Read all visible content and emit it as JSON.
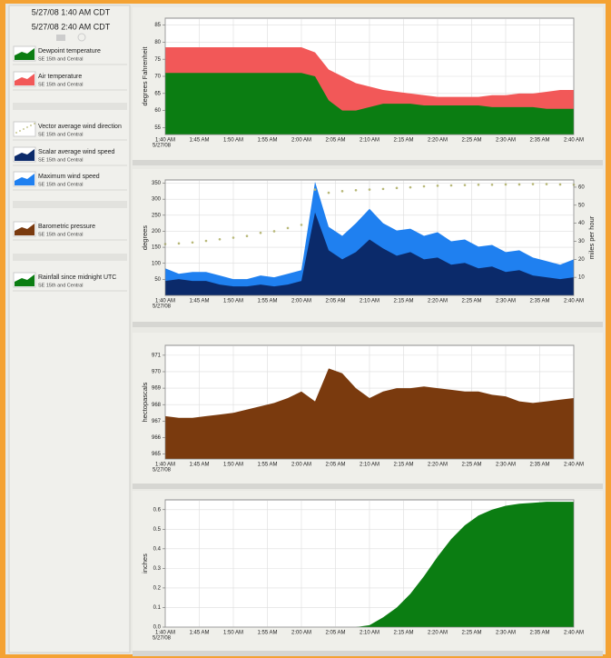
{
  "sidebar": {
    "times": [
      "5/27/08 1:40 AM CDT",
      "5/27/08 2:40 AM CDT"
    ],
    "legend": [
      {
        "name": "Dewpoint temperature",
        "location": "SE 15th and Central",
        "color": "#0b7d12"
      },
      {
        "name": "Air temperature",
        "location": "SE 15th and Central",
        "color": "#f25858"
      },
      {
        "name": "Vector average wind direction",
        "location": "SE 15th and Central",
        "color": "#b8b878"
      },
      {
        "name": "Scalar average wind speed",
        "location": "SE 15th and Central",
        "color": "#0b2a6a"
      },
      {
        "name": "Maximum wind speed",
        "location": "SE 15th and Central",
        "color": "#1f80f0"
      },
      {
        "name": "Barometric pressure",
        "location": "SE 15th and Central",
        "color": "#7a3a0e"
      },
      {
        "name": "Rainfall since midnight UTC",
        "location": "SE 15th and Central",
        "color": "#0b7d12"
      }
    ]
  },
  "chart_data": [
    {
      "type": "area",
      "ylabel": "degrees Fahrenheit",
      "xdate": "5/27/08",
      "x": [
        "1:40 AM",
        "1:42 AM",
        "1:44 AM",
        "1:46 AM",
        "1:48 AM",
        "1:50 AM",
        "1:52 AM",
        "1:54 AM",
        "1:56 AM",
        "1:58 AM",
        "2:00 AM",
        "2:02 AM",
        "2:04 AM",
        "2:06 AM",
        "2:08 AM",
        "2:10 AM",
        "2:12 AM",
        "2:14 AM",
        "2:16 AM",
        "2:18 AM",
        "2:20 AM",
        "2:22 AM",
        "2:24 AM",
        "2:26 AM",
        "2:28 AM",
        "2:30 AM",
        "2:32 AM",
        "2:34 AM",
        "2:36 AM",
        "2:38 AM",
        "2:40 AM"
      ],
      "xlim": [
        "1:40 AM",
        "2:40 AM"
      ],
      "xticks": [
        "1:40 AM",
        "1:45 AM",
        "1:50 AM",
        "1:55 AM",
        "2:00 AM",
        "2:05 AM",
        "2:10 AM",
        "2:15 AM",
        "2:20 AM",
        "2:25 AM",
        "2:30 AM",
        "2:35 AM",
        "2:40 AM"
      ],
      "ylim": [
        53,
        87
      ],
      "yticks": [
        55,
        60,
        65,
        70,
        75,
        80,
        85
      ],
      "grid": true,
      "series": [
        {
          "color": "#f25858",
          "values": [
            78.5,
            78.5,
            78.5,
            78.5,
            78.5,
            78.5,
            78.5,
            78.5,
            78.5,
            78.5,
            78.5,
            77,
            72,
            70,
            68,
            67,
            66,
            65.5,
            65,
            64.5,
            64,
            64,
            64,
            64,
            64.5,
            64.5,
            65,
            65,
            65.5,
            66,
            66
          ]
        },
        {
          "color": "#0b7d12",
          "values": [
            71,
            71,
            71,
            71,
            71,
            71,
            71,
            71,
            71,
            71,
            71,
            70,
            63,
            60,
            60,
            61,
            62,
            62,
            62,
            61.5,
            61.5,
            61.5,
            61.5,
            61.5,
            61,
            61,
            61,
            61,
            60.5,
            60.5,
            60.5
          ]
        }
      ]
    },
    {
      "type": "area",
      "ylabel": "degrees",
      "y2label": "miles per hour",
      "xdate": "5/27/08",
      "x": [
        "1:40 AM",
        "1:42 AM",
        "1:44 AM",
        "1:46 AM",
        "1:48 AM",
        "1:50 AM",
        "1:52 AM",
        "1:54 AM",
        "1:56 AM",
        "1:58 AM",
        "2:00 AM",
        "2:02 AM",
        "2:04 AM",
        "2:06 AM",
        "2:08 AM",
        "2:10 AM",
        "2:12 AM",
        "2:14 AM",
        "2:16 AM",
        "2:18 AM",
        "2:20 AM",
        "2:22 AM",
        "2:24 AM",
        "2:26 AM",
        "2:28 AM",
        "2:30 AM",
        "2:32 AM",
        "2:34 AM",
        "2:36 AM",
        "2:38 AM",
        "2:40 AM"
      ],
      "xlim": [
        "1:40 AM",
        "2:40 AM"
      ],
      "xticks": [
        "1:40 AM",
        "1:45 AM",
        "1:50 AM",
        "1:55 AM",
        "2:00 AM",
        "2:05 AM",
        "2:10 AM",
        "2:15 AM",
        "2:20 AM",
        "2:25 AM",
        "2:30 AM",
        "2:35 AM",
        "2:40 AM"
      ],
      "ylim": [
        0,
        360
      ],
      "yticks": [
        50,
        100,
        150,
        200,
        250,
        300,
        350
      ],
      "y2lim": [
        0,
        64
      ],
      "y2ticks": [
        10,
        20,
        30,
        40,
        50,
        60
      ],
      "grid": true,
      "series": [
        {
          "color": "#1f80f0",
          "axis": "y2",
          "values": [
            15,
            12,
            13,
            13,
            11,
            9,
            9,
            11,
            10,
            12,
            14,
            63,
            38,
            33,
            40,
            48,
            40,
            36,
            37,
            33,
            35,
            30,
            31,
            27,
            28,
            24,
            25,
            21,
            19,
            17,
            20
          ]
        },
        {
          "color": "#0b2a6a",
          "axis": "y2",
          "values": [
            8,
            9,
            8,
            8,
            6,
            5,
            5,
            6,
            5,
            6,
            8,
            46,
            25,
            20,
            24,
            31,
            26,
            22,
            24,
            20,
            21,
            17,
            18,
            15,
            16,
            13,
            14,
            11,
            10,
            9,
            10
          ]
        },
        {
          "color": "#b8b878",
          "style": "dots",
          "values": [
            160,
            162,
            165,
            170,
            175,
            180,
            185,
            195,
            200,
            210,
            220,
            330,
            320,
            325,
            328,
            330,
            332,
            335,
            337,
            340,
            342,
            343,
            344,
            345,
            345,
            346,
            346,
            347,
            347,
            346,
            345
          ]
        }
      ]
    },
    {
      "type": "area",
      "ylabel": "hectopascals",
      "xdate": "5/27/08",
      "x": [
        "1:40 AM",
        "1:42 AM",
        "1:44 AM",
        "1:46 AM",
        "1:48 AM",
        "1:50 AM",
        "1:52 AM",
        "1:54 AM",
        "1:56 AM",
        "1:58 AM",
        "2:00 AM",
        "2:02 AM",
        "2:04 AM",
        "2:06 AM",
        "2:08 AM",
        "2:10 AM",
        "2:12 AM",
        "2:14 AM",
        "2:16 AM",
        "2:18 AM",
        "2:20 AM",
        "2:22 AM",
        "2:24 AM",
        "2:26 AM",
        "2:28 AM",
        "2:30 AM",
        "2:32 AM",
        "2:34 AM",
        "2:36 AM",
        "2:38 AM",
        "2:40 AM"
      ],
      "xlim": [
        "1:40 AM",
        "2:40 AM"
      ],
      "xticks": [
        "1:40 AM",
        "1:45 AM",
        "1:50 AM",
        "1:55 AM",
        "2:00 AM",
        "2:05 AM",
        "2:10 AM",
        "2:15 AM",
        "2:20 AM",
        "2:25 AM",
        "2:30 AM",
        "2:35 AM",
        "2:40 AM"
      ],
      "ylim": [
        964.7,
        971.6
      ],
      "yticks": [
        965,
        966,
        967,
        968,
        969,
        970,
        971
      ],
      "grid": true,
      "series": [
        {
          "color": "#7a3a0e",
          "values": [
            967.3,
            967.2,
            967.2,
            967.3,
            967.4,
            967.5,
            967.7,
            967.9,
            968.1,
            968.4,
            968.8,
            968.2,
            970.2,
            969.9,
            969.0,
            968.4,
            968.8,
            969.0,
            969.0,
            969.1,
            969.0,
            968.9,
            968.8,
            968.8,
            968.6,
            968.5,
            968.2,
            968.1,
            968.2,
            968.3,
            968.4
          ]
        }
      ]
    },
    {
      "type": "area",
      "ylabel": "inches",
      "xdate": "5/27/08",
      "x": [
        "1:40 AM",
        "1:42 AM",
        "1:44 AM",
        "1:46 AM",
        "1:48 AM",
        "1:50 AM",
        "1:52 AM",
        "1:54 AM",
        "1:56 AM",
        "1:58 AM",
        "2:00 AM",
        "2:02 AM",
        "2:04 AM",
        "2:06 AM",
        "2:08 AM",
        "2:10 AM",
        "2:12 AM",
        "2:14 AM",
        "2:16 AM",
        "2:18 AM",
        "2:20 AM",
        "2:22 AM",
        "2:24 AM",
        "2:26 AM",
        "2:28 AM",
        "2:30 AM",
        "2:32 AM",
        "2:34 AM",
        "2:36 AM",
        "2:38 AM",
        "2:40 AM"
      ],
      "xlim": [
        "1:40 AM",
        "2:40 AM"
      ],
      "xticks": [
        "1:40 AM",
        "1:45 AM",
        "1:50 AM",
        "1:55 AM",
        "2:00 AM",
        "2:05 AM",
        "2:10 AM",
        "2:15 AM",
        "2:20 AM",
        "2:25 AM",
        "2:30 AM",
        "2:35 AM",
        "2:40 AM"
      ],
      "ylim": [
        0,
        0.65
      ],
      "yticks": [
        {
          "value": 0,
          "label": "0.0"
        },
        0.1,
        0.2,
        0.3,
        0.4,
        0.5,
        0.6
      ],
      "grid": true,
      "series": [
        {
          "color": "#0b7d12",
          "values": [
            0,
            0,
            0,
            0,
            0,
            0,
            0,
            0,
            0,
            0,
            0,
            0,
            0,
            0,
            0,
            0.01,
            0.05,
            0.1,
            0.17,
            0.26,
            0.36,
            0.45,
            0.52,
            0.57,
            0.6,
            0.62,
            0.63,
            0.635,
            0.64,
            0.64,
            0.64
          ]
        }
      ]
    }
  ]
}
